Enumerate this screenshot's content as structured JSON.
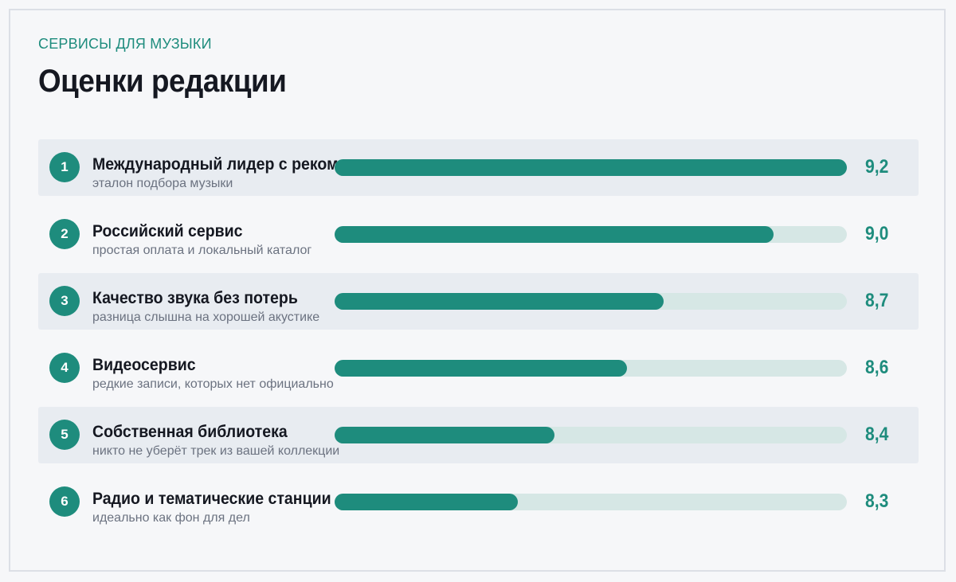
{
  "header": {
    "eyebrow": "СЕРВИСЫ ДЛЯ МУЗЫКИ",
    "title": "Оценки редакции"
  },
  "colors": {
    "accent": "#1e8c7d",
    "track": "#d6e7e5",
    "row_alt": "#e8ecf1",
    "text": "#151821",
    "muted": "#6b7280"
  },
  "scale": {
    "min": 7.8,
    "max": 9.2
  },
  "items": [
    {
      "rank": "1",
      "name": "Международный лидер с рекомендациями",
      "note": "эталон подбора музыки",
      "score": 9.2,
      "score_label": "9,2"
    },
    {
      "rank": "2",
      "name": "Российский сервис",
      "note": "простая оплата и локальный каталог",
      "score": 9.0,
      "score_label": "9,0"
    },
    {
      "rank": "3",
      "name": "Качество звука без потерь",
      "note": "разница слышна на хорошей акустике",
      "score": 8.7,
      "score_label": "8,7"
    },
    {
      "rank": "4",
      "name": "Видеосервис",
      "note": "редкие записи, которых нет официально",
      "score": 8.6,
      "score_label": "8,6"
    },
    {
      "rank": "5",
      "name": "Собственная библиотека",
      "note": "никто не уберёт трек из вашей коллекции",
      "score": 8.4,
      "score_label": "8,4"
    },
    {
      "rank": "6",
      "name": "Радио и тематические станции",
      "note": "идеально как фон для дел",
      "score": 8.3,
      "score_label": "8,3"
    }
  ]
}
